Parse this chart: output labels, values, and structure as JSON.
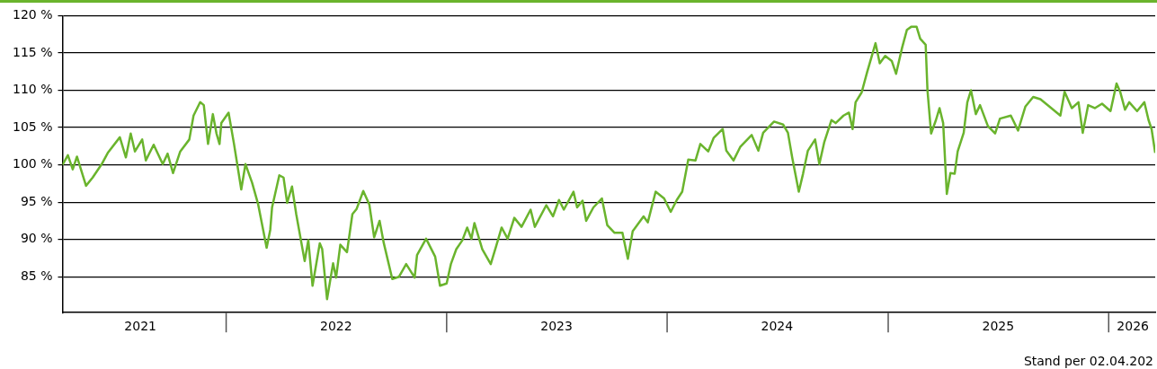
{
  "chart_data": {
    "type": "line",
    "x": [
      "2021-04-05",
      "2021-04-14",
      "2021-04-22",
      "2021-04-29",
      "2021-05-14",
      "2021-05-25",
      "2021-06-09",
      "2021-06-19",
      "2021-07-09",
      "2021-07-19",
      "2021-07-27",
      "2021-08-03",
      "2021-08-15",
      "2021-08-21",
      "2021-09-03",
      "2021-09-18",
      "2021-09-26",
      "2021-10-05",
      "2021-10-17",
      "2021-11-01",
      "2021-11-08",
      "2021-11-19",
      "2021-11-25",
      "2021-12-02",
      "2021-12-10",
      "2021-12-16",
      "2021-12-21",
      "2021-12-24",
      "2022-01-05",
      "2022-01-14",
      "2022-01-26",
      "2022-02-02",
      "2022-02-13",
      "2022-02-23",
      "2022-03-09",
      "2022-03-15",
      "2022-03-18",
      "2022-03-30",
      "2022-04-06",
      "2022-04-12",
      "2022-04-20",
      "2022-04-27",
      "2022-05-11",
      "2022-05-17",
      "2022-05-24",
      "2022-06-05",
      "2022-06-09",
      "2022-06-17",
      "2022-06-27",
      "2022-07-02",
      "2022-07-09",
      "2022-07-20",
      "2022-07-29",
      "2022-08-05",
      "2022-08-16",
      "2022-08-26",
      "2022-09-03",
      "2022-09-12",
      "2022-09-19",
      "2022-10-03",
      "2022-10-14",
      "2022-10-26",
      "2022-11-09",
      "2022-11-13",
      "2022-11-28",
      "2022-12-13",
      "2022-12-21",
      "2023-01-01",
      "2023-01-08",
      "2023-01-17",
      "2023-01-27",
      "2023-02-04",
      "2023-02-11",
      "2023-02-16",
      "2023-03-01",
      "2023-03-15",
      "2023-03-24",
      "2023-04-02",
      "2023-04-12",
      "2023-04-23",
      "2023-05-05",
      "2023-05-20",
      "2023-05-27",
      "2023-06-15",
      "2023-06-26",
      "2023-07-06",
      "2023-07-14",
      "2023-07-30",
      "2023-08-05",
      "2023-08-14",
      "2023-08-20",
      "2023-09-01",
      "2023-09-15",
      "2023-09-24",
      "2023-10-06",
      "2023-10-19",
      "2023-10-28",
      "2023-11-05",
      "2023-11-23",
      "2023-11-30",
      "2023-12-13",
      "2023-12-27",
      "2024-01-07",
      "2024-01-17",
      "2024-01-26",
      "2024-02-05",
      "2024-02-17",
      "2024-02-25",
      "2024-03-09",
      "2024-03-18",
      "2024-04-02",
      "2024-04-08",
      "2024-04-20",
      "2024-05-01",
      "2024-05-20",
      "2024-05-31",
      "2024-06-08",
      "2024-06-26",
      "2024-07-11",
      "2024-07-19",
      "2024-07-26",
      "2024-08-06",
      "2024-08-13",
      "2024-08-21",
      "2024-09-02",
      "2024-09-09",
      "2024-09-17",
      "2024-09-29",
      "2024-10-06",
      "2024-10-19",
      "2024-10-28",
      "2024-11-03",
      "2024-11-08",
      "2024-11-18",
      "2024-11-27",
      "2024-12-11",
      "2024-12-18",
      "2024-12-27",
      "2025-01-07",
      "2025-01-14",
      "2025-01-24",
      "2025-02-01",
      "2025-02-08",
      "2025-02-17",
      "2025-02-23",
      "2025-03-04",
      "2025-03-07",
      "2025-03-13",
      "2025-03-21",
      "2025-03-27",
      "2025-04-02",
      "2025-04-08",
      "2025-04-14",
      "2025-04-21",
      "2025-04-26",
      "2025-05-06",
      "2025-05-12",
      "2025-05-18",
      "2025-05-26",
      "2025-06-02",
      "2025-06-15",
      "2025-06-27",
      "2025-07-05",
      "2025-07-23",
      "2025-08-04",
      "2025-08-16",
      "2025-08-29",
      "2025-09-10",
      "2025-09-25",
      "2025-10-13",
      "2025-10-20",
      "2025-11-01",
      "2025-11-12",
      "2025-11-19",
      "2025-11-28",
      "2025-12-09",
      "2025-12-21",
      "2026-01-04",
      "2026-01-14",
      "2026-01-20",
      "2026-01-28",
      "2026-02-04",
      "2026-02-17",
      "2026-03-01",
      "2026-03-08",
      "2026-03-13",
      "2026-03-19"
    ],
    "series": [
      {
        "color": "#6ab42d",
        "values": [
          100,
          101.3,
          99.4,
          101.1,
          97.2,
          98.3,
          100.1,
          101.6,
          103.7,
          101,
          104.2,
          101.8,
          103.4,
          100.6,
          102.7,
          100.1,
          101.5,
          98.9,
          101.8,
          103.4,
          106.6,
          108.4,
          108,
          102.8,
          106.8,
          104.2,
          102.8,
          105.6,
          107,
          102.8,
          96.7,
          100.1,
          97.6,
          94.7,
          88.9,
          91.3,
          94.3,
          98.6,
          98.3,
          94.9,
          97.1,
          93.4,
          87.1,
          89.9,
          83.8,
          89.5,
          88.7,
          82,
          86.8,
          84.9,
          89.3,
          88.3,
          93.4,
          94.1,
          96.5,
          94.7,
          90.3,
          92.5,
          89.5,
          84.7,
          85,
          86.7,
          84.9,
          87.9,
          90.1,
          87.7,
          83.8,
          84.1,
          86.7,
          88.7,
          89.9,
          91.6,
          90.1,
          92.2,
          88.7,
          86.7,
          89.1,
          91.6,
          90.1,
          92.9,
          91.7,
          94,
          91.7,
          94.6,
          93.1,
          95.3,
          94,
          96.4,
          94.3,
          95.2,
          92.5,
          94.3,
          95.5,
          91.9,
          90.9,
          90.9,
          87.4,
          91.1,
          93.1,
          92.3,
          96.4,
          95.5,
          93.7,
          95.3,
          96.4,
          100.7,
          100.6,
          102.8,
          101.8,
          103.6,
          104.8,
          101.9,
          100.6,
          102.4,
          104,
          101.9,
          104.3,
          105.8,
          105.4,
          104.3,
          101,
          96.4,
          98.8,
          101.9,
          103.4,
          100.1,
          103,
          106,
          105.6,
          106.6,
          107,
          104.8,
          108.4,
          109.7,
          112.4,
          116.3,
          113.6,
          114.6,
          113.9,
          112.2,
          115.7,
          118.1,
          118.5,
          118.5,
          116.9,
          116.1,
          110,
          104.2,
          106,
          107.6,
          105.6,
          96.1,
          98.9,
          98.8,
          101.8,
          104.3,
          108.4,
          110,
          106.8,
          108,
          105.2,
          104.2,
          106.2,
          106.6,
          104.6,
          107.8,
          109.1,
          108.8,
          107.8,
          106.6,
          109.8,
          107.6,
          108.4,
          104.3,
          108,
          107.6,
          108.2,
          107.2,
          110.9,
          109.8,
          107.4,
          108.4,
          107.2,
          108.4,
          106,
          104.8,
          101.6
        ]
      }
    ],
    "xlim": [
      "2021-04-05",
      "2026-03-19"
    ],
    "xticks": [
      {
        "value": "2021-08-12",
        "label": "2021"
      },
      {
        "value": "2022-07-02",
        "label": "2022"
      },
      {
        "value": "2023-07-02",
        "label": "2023"
      },
      {
        "value": "2024-07-01",
        "label": "2024"
      },
      {
        "value": "2025-07-02",
        "label": "2025"
      },
      {
        "value": "2026-02-10",
        "label": "2026"
      }
    ],
    "ylim": [
      80.2,
      120
    ],
    "yticks": [
      {
        "value": 85,
        "label": "85 %"
      },
      {
        "value": 90,
        "label": "90 %"
      },
      {
        "value": 95,
        "label": "95 %"
      },
      {
        "value": 100,
        "label": "100 %"
      },
      {
        "value": 105,
        "label": "105 %"
      },
      {
        "value": 110,
        "label": "110 %"
      },
      {
        "value": 115,
        "label": "115 %"
      },
      {
        "value": 120,
        "label": "120 %"
      }
    ],
    "grid": "y",
    "legend": false,
    "annotations": [
      "Stand per 02.04.202"
    ]
  }
}
